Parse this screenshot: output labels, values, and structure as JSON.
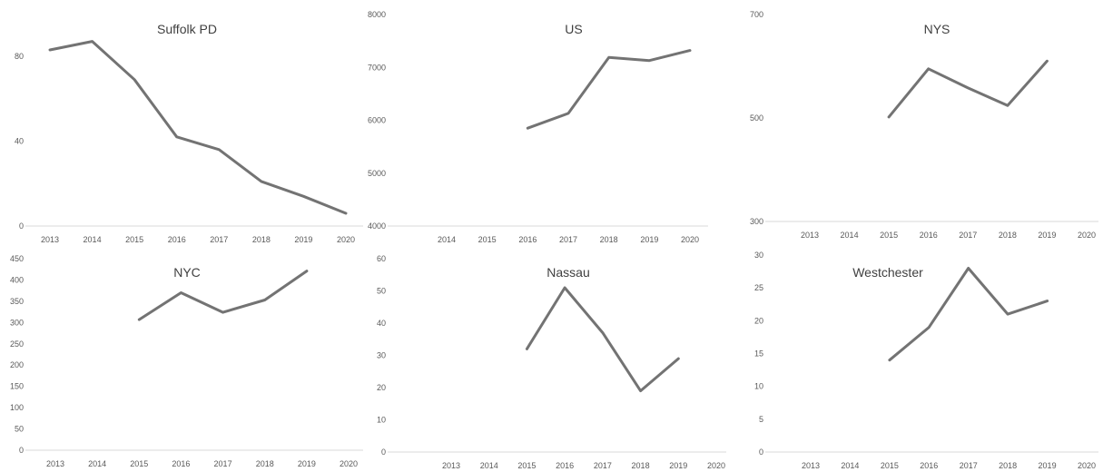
{
  "style": {
    "line_color": "#737373",
    "axis_color": "#d9d9d9",
    "text_color": "#595959",
    "title_color": "#404040"
  },
  "chart_data": [
    {
      "type": "line",
      "title": "Suffolk PD",
      "xlabel": "",
      "ylabel": "",
      "categories": [
        "2013",
        "2014",
        "2015",
        "2016",
        "2017",
        "2018",
        "2019",
        "2020"
      ],
      "ylim": [
        0,
        80
      ],
      "yticks": [
        0,
        40,
        80
      ],
      "grid": false,
      "series": [
        {
          "values": [
            83,
            87,
            69,
            42,
            36,
            21,
            14,
            6
          ]
        }
      ]
    },
    {
      "type": "line",
      "title": "US",
      "xlabel": "",
      "ylabel": "",
      "categories": [
        "2014",
        "2015",
        "2016",
        "2017",
        "2018",
        "2019",
        "2020"
      ],
      "ylim": [
        4000,
        8000
      ],
      "yticks": [
        4000,
        5000,
        6000,
        7000,
        8000
      ],
      "grid": false,
      "series": [
        {
          "values": [
            null,
            null,
            5850,
            6130,
            7190,
            7130,
            7320
          ]
        }
      ]
    },
    {
      "type": "line",
      "title": "NYS",
      "xlabel": "",
      "ylabel": "",
      "categories": [
        "2013",
        "2014",
        "2015",
        "2016",
        "2017",
        "2018",
        "2019",
        "2020"
      ],
      "ylim": [
        300,
        700
      ],
      "yticks": [
        300,
        500,
        700
      ],
      "grid": false,
      "series": [
        {
          "values": [
            null,
            null,
            502,
            595,
            558,
            524,
            610,
            null
          ]
        }
      ]
    },
    {
      "type": "line",
      "title": "NYC",
      "xlabel": "",
      "ylabel": "",
      "categories": [
        "2013",
        "2014",
        "2015",
        "2016",
        "2017",
        "2018",
        "2019",
        "2020"
      ],
      "ylim": [
        0,
        450
      ],
      "yticks": [
        0,
        50,
        100,
        150,
        200,
        250,
        300,
        350,
        400,
        450
      ],
      "grid": false,
      "series": [
        {
          "values": [
            null,
            null,
            307,
            370,
            324,
            353,
            421,
            null
          ]
        }
      ]
    },
    {
      "type": "line",
      "title": "Nassau",
      "xlabel": "",
      "ylabel": "",
      "categories": [
        "2013",
        "2014",
        "2015",
        "2016",
        "2017",
        "2018",
        "2019",
        "2020"
      ],
      "ylim": [
        0,
        60
      ],
      "yticks": [
        0,
        10,
        20,
        30,
        40,
        50,
        60
      ],
      "grid": false,
      "series": [
        {
          "values": [
            null,
            null,
            32,
            51,
            37,
            19,
            29,
            null
          ]
        }
      ]
    },
    {
      "type": "line",
      "title": "Westchester",
      "xlabel": "",
      "ylabel": "",
      "categories": [
        "2013",
        "2014",
        "2015",
        "2016",
        "2017",
        "2018",
        "2019",
        "2020"
      ],
      "ylim": [
        0,
        30
      ],
      "yticks": [
        0,
        5,
        10,
        15,
        20,
        25,
        30
      ],
      "grid": false,
      "series": [
        {
          "values": [
            null,
            null,
            14,
            19,
            28,
            21,
            23,
            null
          ]
        }
      ]
    }
  ]
}
